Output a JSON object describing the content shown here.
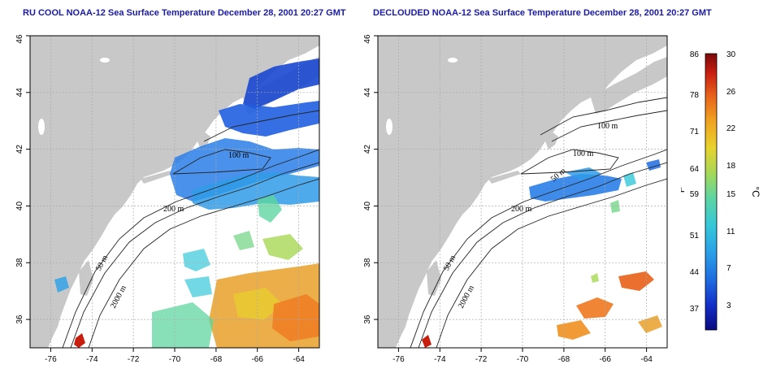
{
  "colors": {
    "title": "#1a1aa8",
    "land": "#c8c8c8",
    "ocean": "#ffffff",
    "grid": "#aaaaaa",
    "colorbar": [
      "#0a0a80",
      "#1230c8",
      "#1e6be0",
      "#2aa0e8",
      "#36c8d8",
      "#5fd6a0",
      "#a8d855",
      "#e8d22c",
      "#f0a020",
      "#e8601a",
      "#c81e10",
      "#7a0a0a"
    ]
  },
  "left_panel": {
    "title": "RU COOL NOAA-12 Sea Surface Temperature December 28, 2001 20:27 GMT",
    "contour_labels": [
      "100 m",
      "200 m",
      "50 m",
      "2000 m"
    ]
  },
  "right_panel": {
    "title": "DECLOUDED NOAA-12 Sea Surface Temperature December 28, 2001 20:27 GMT",
    "contour_labels": [
      "100 m",
      "100 m",
      "50 m",
      "200 m",
      "50 m",
      "2000 m"
    ]
  },
  "axes": {
    "lon_ticks": [
      "-76",
      "-74",
      "-72",
      "-70",
      "-68",
      "-66",
      "-64"
    ],
    "lat_ticks": [
      "36",
      "38",
      "40",
      "42",
      "44",
      "46"
    ],
    "xlim": [
      -77,
      -63
    ],
    "ylim": [
      35,
      46
    ]
  },
  "colorbar": {
    "fahrenheit_ticks": [
      "86",
      "78",
      "71",
      "64",
      "59",
      "51",
      "44",
      "37"
    ],
    "celsius_ticks": [
      "30",
      "26",
      "22",
      "18",
      "15",
      "11",
      "7",
      "3"
    ],
    "fahrenheit_unit": "°F",
    "celsius_unit": "°C",
    "range_c": [
      0,
      30
    ]
  }
}
